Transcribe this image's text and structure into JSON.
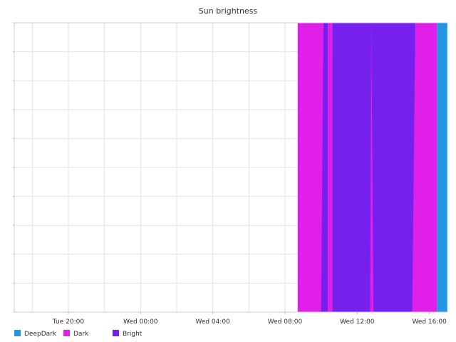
{
  "chart_data": {
    "type": "area",
    "title": "Sun brightness",
    "xlabel": "",
    "ylabel": "",
    "x_range": [
      "Tue 17:00",
      "Wed 17:00"
    ],
    "x_ticks": [
      "Tue 20:00",
      "Wed 00:00",
      "Wed 04:00",
      "Wed 08:00",
      "Wed 12:00",
      "Wed 16:00"
    ],
    "x_tick_hours": [
      3,
      7,
      11,
      15,
      19,
      23
    ],
    "grid": true,
    "legend_placement": "bottom-left",
    "series": [
      {
        "name": "DeepDark",
        "color": "#2196E3",
        "segments": [
          {
            "start": "Wed 16:25",
            "end": "Wed 17:00",
            "start_hour": 23.42,
            "end_hour": 24.0
          }
        ]
      },
      {
        "name": "Dark",
        "color": "#E020E8",
        "segments": [
          {
            "start": "Wed 08:42",
            "end": "Wed 10:08",
            "start_hour": 15.7,
            "end_hour": 17.13
          },
          {
            "start": "Wed 10:22",
            "end": "Wed 10:37",
            "start_hour": 17.37,
            "end_hour": 17.62
          },
          {
            "start": "Wed 15:13",
            "end": "Wed 16:25",
            "start_hour": 22.22,
            "end_hour": 23.42
          }
        ]
      },
      {
        "name": "Bright",
        "color": "#7620EE",
        "segments": [
          {
            "start": "Wed 10:08",
            "end": "Wed 10:22",
            "start_hour": 17.13,
            "end_hour": 17.37
          },
          {
            "start": "Wed 10:37",
            "end": "Wed 15:13",
            "start_hour": 17.62,
            "end_hour": 22.22
          }
        ]
      }
    ]
  }
}
